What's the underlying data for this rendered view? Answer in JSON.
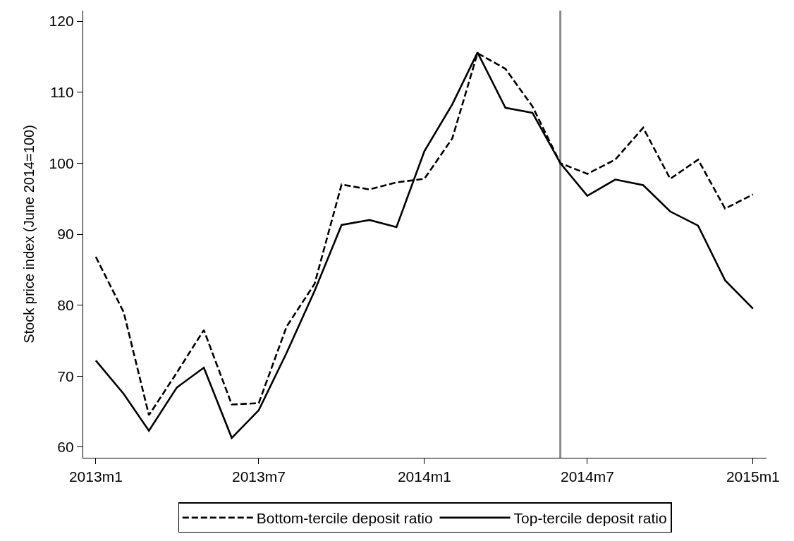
{
  "chart_data": {
    "type": "line",
    "ylabel": "Stock price index (June 2014=100)",
    "x": [
      "2013-01",
      "2013-02",
      "2013-03",
      "2013-04",
      "2013-05",
      "2013-06",
      "2013-07",
      "2013-08",
      "2013-09",
      "2013-10",
      "2013-11",
      "2013-12",
      "2014-01",
      "2014-02",
      "2014-03",
      "2014-04",
      "2014-05",
      "2014-06",
      "2014-07",
      "2014-08",
      "2014-09",
      "2014-10",
      "2014-11",
      "2014-12",
      "2015-01"
    ],
    "series": [
      {
        "name": "Bottom-tercile deposit ratio",
        "color": "#000000",
        "line_style": "dashed",
        "values": [
          86.8,
          79,
          64.5,
          70.5,
          76.5,
          66,
          66.2,
          77,
          83,
          97,
          96.3,
          97.3,
          97.8,
          103.5,
          115.5,
          113.3,
          108,
          100,
          98.5,
          100.5,
          105,
          97.8,
          100.5,
          93.6,
          95.6
        ]
      },
      {
        "name": "Top-tercile deposit ratio",
        "color": "#000000",
        "line_style": "solid",
        "values": [
          72.2,
          67.5,
          62.3,
          68.4,
          71.2,
          61.3,
          65.2,
          73.3,
          82,
          91.3,
          92,
          91,
          101.7,
          108.3,
          115.6,
          107.8,
          107.1,
          100,
          95.4,
          97.7,
          96.9,
          93.2,
          91.2,
          83.5,
          79.5
        ]
      }
    ],
    "xlim": [
      "2012-12-18",
      "2015-01-16"
    ],
    "xticks": [
      {
        "value": "2013-01",
        "label": "2013m1"
      },
      {
        "value": "2013-07",
        "label": "2013m7"
      },
      {
        "value": "2014-01",
        "label": "2014m1"
      },
      {
        "value": "2014-07",
        "label": "2014m7"
      },
      {
        "value": "2015-01",
        "label": "2015m1"
      }
    ],
    "ylim": [
      58.5,
      121.5
    ],
    "yticks": [
      60,
      70,
      80,
      90,
      100,
      110,
      120
    ],
    "ref_lines": [
      {
        "axis": "x",
        "value": "2014-06",
        "color": "#8c8c8c"
      }
    ],
    "grid": false,
    "legend": "bottom",
    "marker": "none"
  }
}
